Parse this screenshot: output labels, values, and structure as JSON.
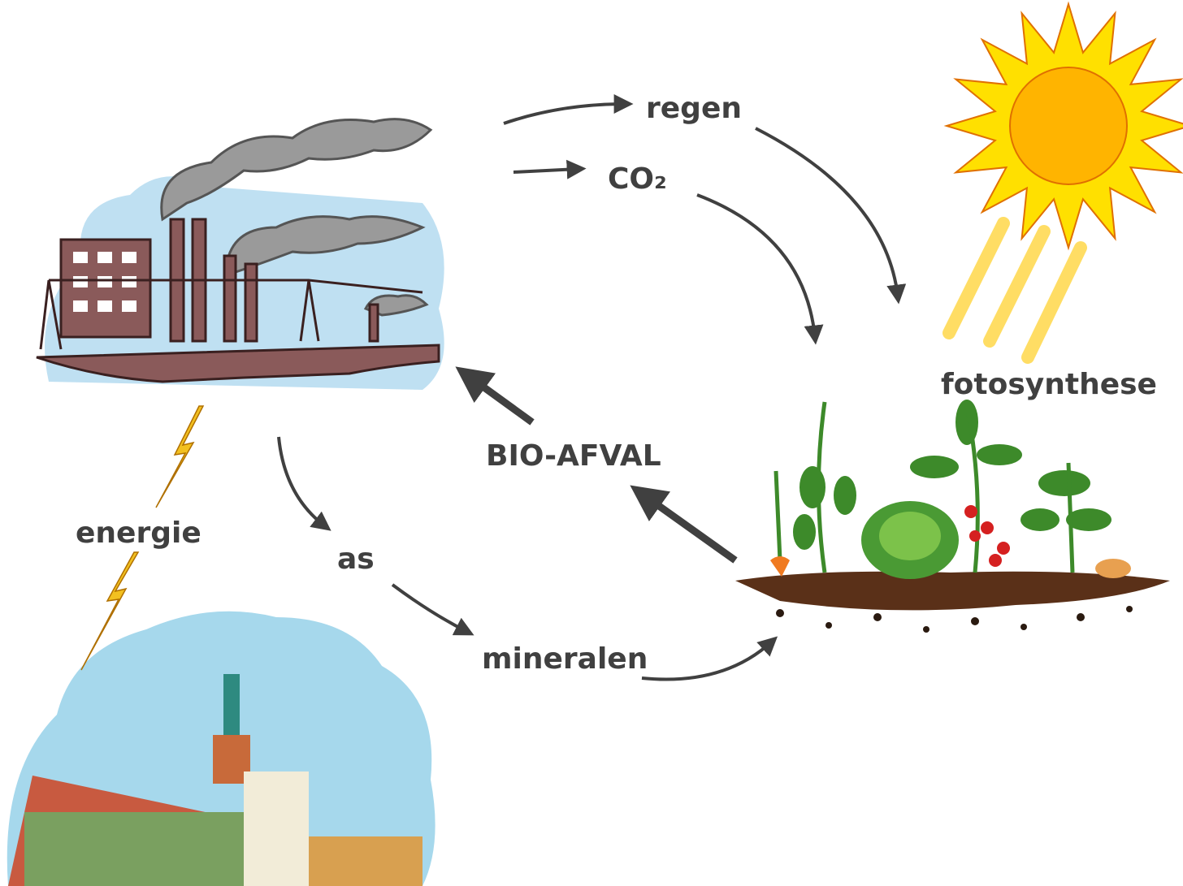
{
  "labels": {
    "regen": "regen",
    "co2": "CO₂",
    "fotosynthese": "fotosynthese",
    "bio_afval": "BIO-AFVAL",
    "energie": "energie",
    "as": "as",
    "mineralen": "mineralen"
  }
}
